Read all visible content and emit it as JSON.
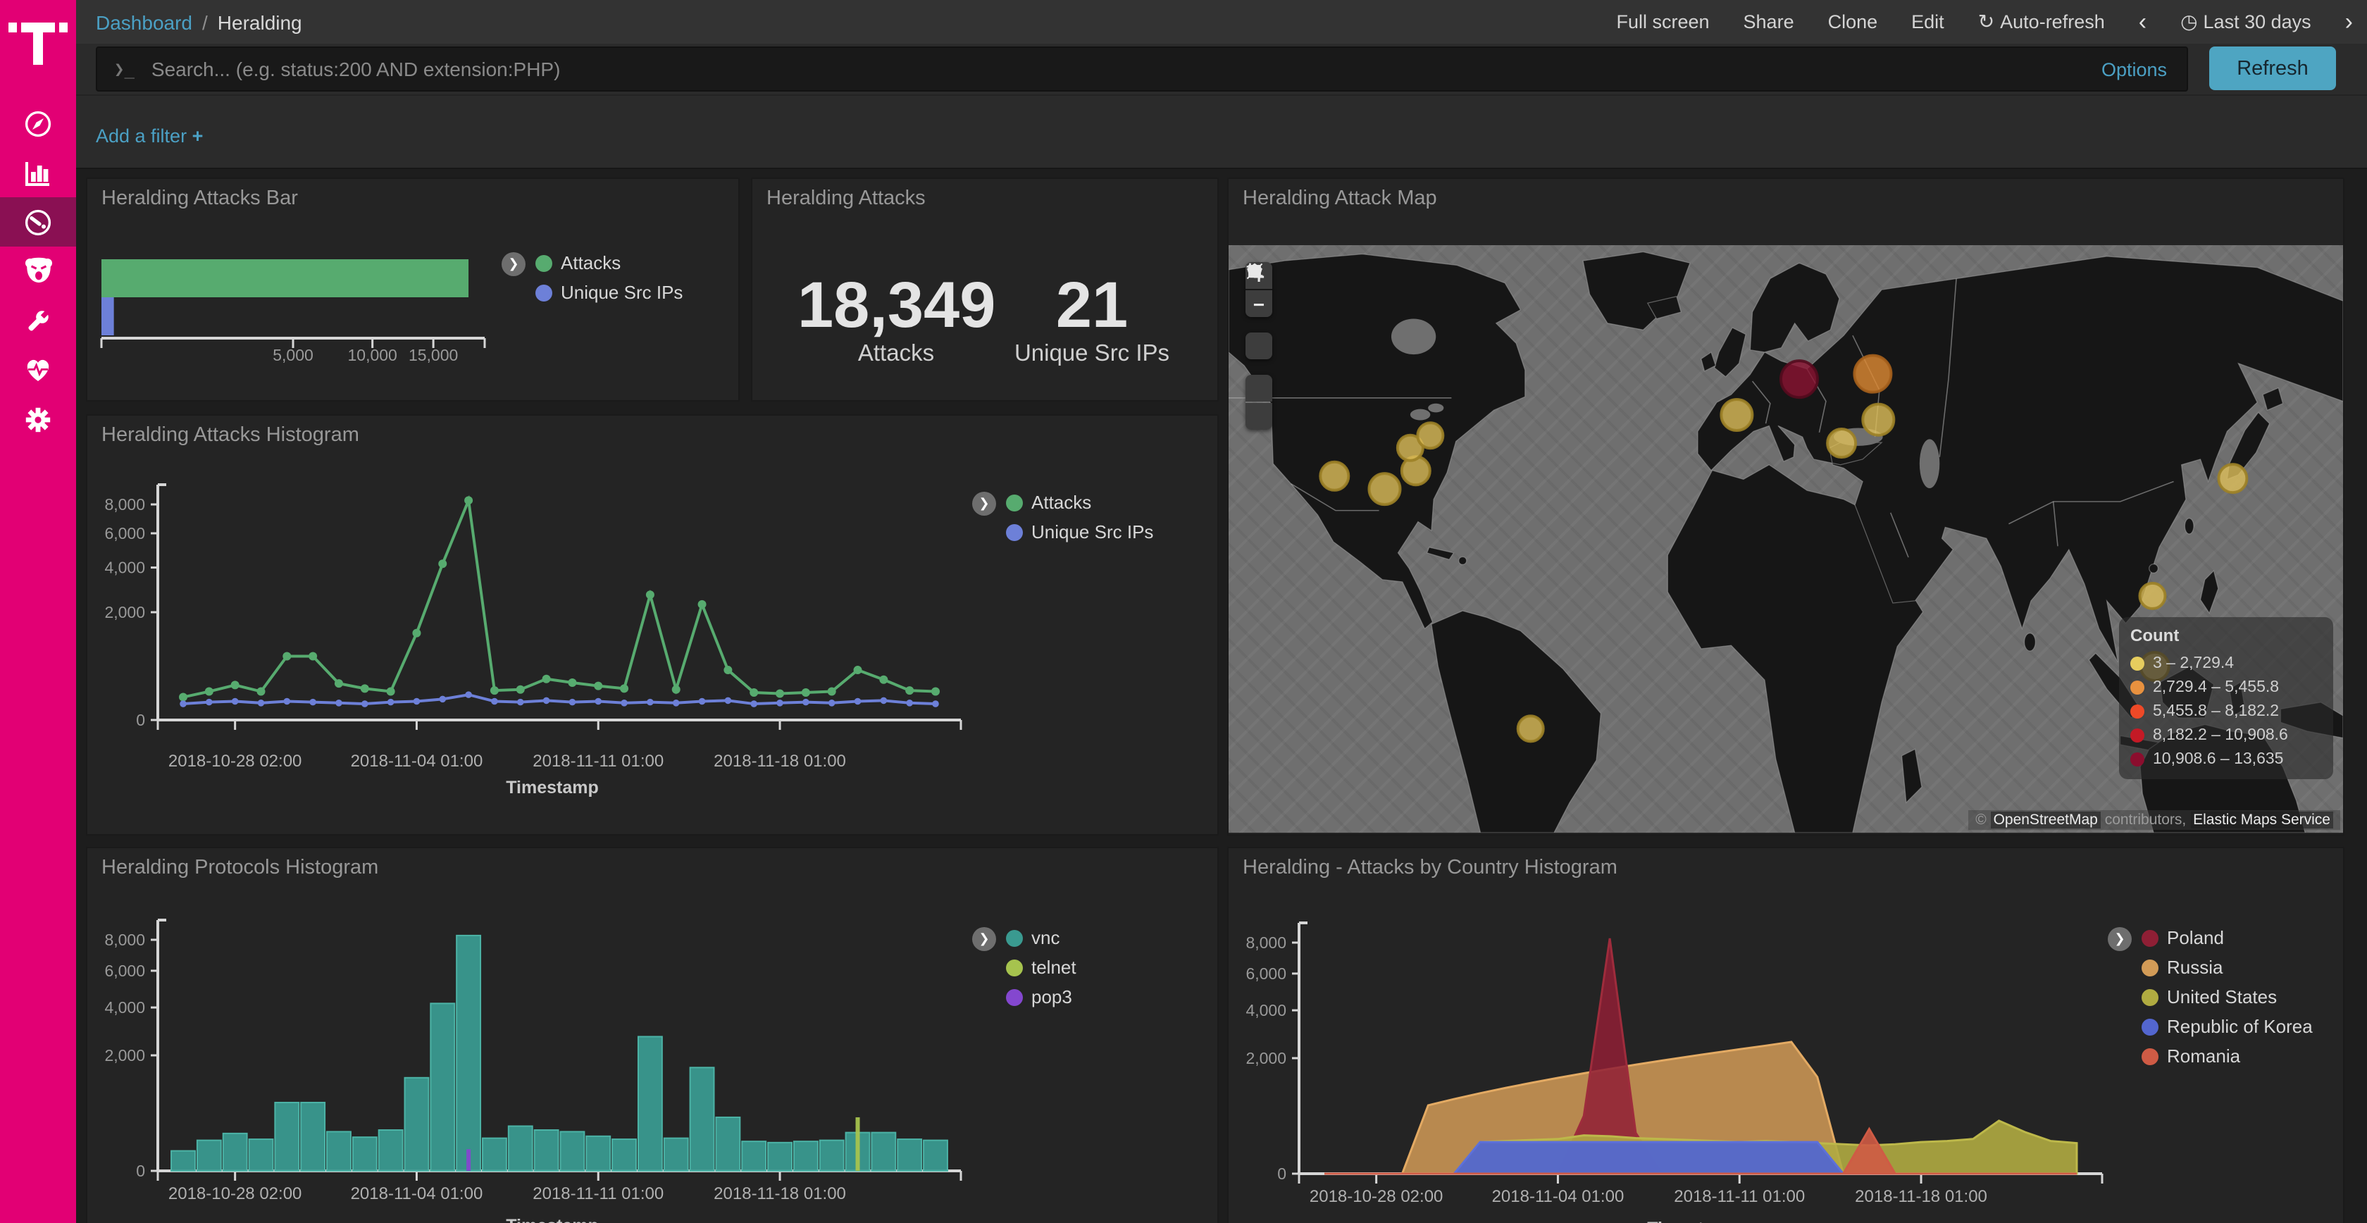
{
  "topnav": {
    "breadcrumb": {
      "root": "Dashboard",
      "separator": "/",
      "current": "Heralding"
    },
    "actions": [
      "Full screen",
      "Share",
      "Clone",
      "Edit"
    ],
    "refresh_icon": "↻",
    "auto_refresh": "Auto-refresh",
    "prev": "‹",
    "clock_icon": "◷",
    "time_range": "Last 30 days",
    "next": "›"
  },
  "search": {
    "prompt": "❯_",
    "placeholder": "Search... (e.g. status:200 AND extension:PHP)",
    "options": "Options",
    "refresh": "Refresh"
  },
  "filters": {
    "add_filter": "Add a filter",
    "plus": "+"
  },
  "sidebar": {
    "accent": "#e20074",
    "selected_bg": "#8a1053",
    "icons": [
      "compass-icon",
      "bar-chart-icon",
      "gauge-icon",
      "bear-icon",
      "wrench-icon",
      "heartbeat-icon",
      "gear-icon"
    ]
  },
  "panels": {
    "attacks_metric": {
      "title": "Heralding Attacks",
      "items": [
        {
          "value": "18,349",
          "label": "Attacks"
        },
        {
          "value": "21",
          "label": "Unique Src IPs"
        }
      ]
    }
  },
  "map": {
    "title": "Heralding Attack Map",
    "controls": {
      "zoom_in": "+",
      "zoom_out": "−"
    },
    "legend": {
      "title": "Count",
      "items": [
        {
          "range": "3 – 2,729.4",
          "color": "#e6cd5e"
        },
        {
          "range": "2,729.4 – 5,455.8",
          "color": "#e8913f"
        },
        {
          "range": "5,455.8 – 8,182.2",
          "color": "#ee4927"
        },
        {
          "range": "8,182.2 – 10,908.6",
          "color": "#c41a26"
        },
        {
          "range": "10,908.6 – 13,635",
          "color": "#8b0e2e"
        }
      ]
    },
    "attribution": {
      "prefix": "©",
      "osm": "OpenStreetMap",
      "middle": "contributors,",
      "ems": "Elastic Maps Service"
    },
    "bubbles": [
      {
        "x": 9.5,
        "y": 39.3,
        "r": 10,
        "fill": "#debf5a",
        "stroke": "#9c8126"
      },
      {
        "x": 14.0,
        "y": 41.5,
        "r": 11,
        "fill": "#debf5a",
        "stroke": "#9c8126"
      },
      {
        "x": 16.8,
        "y": 38.4,
        "r": 10,
        "fill": "#debf5a",
        "stroke": "#9c8126"
      },
      {
        "x": 16.3,
        "y": 34.5,
        "r": 9,
        "fill": "#debf5a",
        "stroke": "#9c8126"
      },
      {
        "x": 18.1,
        "y": 32.4,
        "r": 9,
        "fill": "#debf5a",
        "stroke": "#9c8126"
      },
      {
        "x": 27.1,
        "y": 82.3,
        "r": 9,
        "fill": "#debf5a",
        "stroke": "#9c8126"
      },
      {
        "x": 45.6,
        "y": 28.9,
        "r": 11,
        "fill": "#debf5a",
        "stroke": "#9c8126"
      },
      {
        "x": 51.2,
        "y": 22.8,
        "r": 13,
        "fill": "#8c1332",
        "stroke": "#540b1e"
      },
      {
        "x": 57.8,
        "y": 21.9,
        "r": 13,
        "fill": "#e08b33",
        "stroke": "#a6611c"
      },
      {
        "x": 58.3,
        "y": 29.7,
        "r": 11,
        "fill": "#debf5a",
        "stroke": "#9c8126"
      },
      {
        "x": 55.0,
        "y": 33.7,
        "r": 10,
        "fill": "#debf5a",
        "stroke": "#9c8126"
      },
      {
        "x": 90.1,
        "y": 39.7,
        "r": 10,
        "fill": "#debf5a",
        "stroke": "#9c8126"
      },
      {
        "x": 82.9,
        "y": 59.7,
        "r": 9,
        "fill": "#debf5a",
        "stroke": "#9c8126"
      },
      {
        "x": 83.1,
        "y": 71.7,
        "r": 10,
        "fill": "#debf5a",
        "stroke": "#9c8126"
      }
    ]
  },
  "chart_data": [
    {
      "id": "attacks-bar",
      "type": "bar",
      "orientation": "horizontal",
      "title": "Heralding Attacks Bar",
      "x_scale": "sqrt",
      "xlim": [
        0,
        20000
      ],
      "xticks": [
        5000,
        10000,
        15000
      ],
      "categories": [
        "Attacks",
        "Unique Src IPs"
      ],
      "values": [
        18349,
        21
      ],
      "colors": [
        "#57ab6f",
        "#6d80d8"
      ]
    },
    {
      "id": "attacks-histogram",
      "type": "line",
      "title": "Heralding Attacks Histogram",
      "xlabel": "Timestamp",
      "y_scale": "sqrt",
      "ylim": [
        0,
        8800
      ],
      "yticks": [
        0,
        2000,
        4000,
        6000,
        8000
      ],
      "x_start": "2018-10-26",
      "x_step_days": 1,
      "xticks": [
        {
          "index": 2,
          "label": "2018-10-28 02:00"
        },
        {
          "index": 9,
          "label": "2018-11-04 01:00"
        },
        {
          "index": 16,
          "label": "2018-11-11 01:00"
        },
        {
          "index": 23,
          "label": "2018-11-18 01:00"
        }
      ],
      "series": [
        {
          "name": "Attacks",
          "color": "#57ab6f",
          "values": [
            90,
            140,
            210,
            140,
            700,
            700,
            230,
            170,
            140,
            1300,
            4200,
            8300,
            150,
            160,
            290,
            240,
            200,
            170,
            2700,
            160,
            2300,
            430,
            130,
            120,
            130,
            140,
            430,
            280,
            150,
            140
          ]
        },
        {
          "name": "Unique Src IPs",
          "color": "#6d80d8",
          "values": [
            45,
            55,
            60,
            50,
            60,
            55,
            50,
            45,
            55,
            60,
            75,
            110,
            60,
            55,
            65,
            55,
            60,
            50,
            55,
            50,
            60,
            65,
            45,
            50,
            55,
            50,
            60,
            65,
            50,
            45
          ]
        }
      ]
    },
    {
      "id": "protocols-histogram",
      "type": "bar",
      "title": "Heralding Protocols Histogram",
      "xlabel": "Timestamp",
      "y_scale": "sqrt",
      "ylim": [
        0,
        8800
      ],
      "yticks": [
        0,
        2000,
        4000,
        6000,
        8000
      ],
      "x_start": "2018-10-26",
      "x_step_days": 1,
      "xticks": [
        {
          "index": 2,
          "label": "2018-10-28 02:00"
        },
        {
          "index": 9,
          "label": "2018-11-04 01:00"
        },
        {
          "index": 16,
          "label": "2018-11-11 01:00"
        },
        {
          "index": 23,
          "label": "2018-11-18 01:00"
        }
      ],
      "series": [
        {
          "name": "vnc",
          "color": "#3a9a90",
          "stroke": "#4cb3a6",
          "values": [
            60,
            140,
            210,
            150,
            700,
            700,
            230,
            170,
            250,
            1300,
            4200,
            8300,
            160,
            300,
            250,
            230,
            180,
            150,
            2700,
            160,
            1600,
            430,
            130,
            120,
            130,
            140,
            220,
            220,
            150,
            140
          ]
        },
        {
          "name": "telnet",
          "color": "#a6c34e",
          "values": [
            0,
            0,
            0,
            0,
            0,
            0,
            0,
            0,
            0,
            0,
            0,
            0,
            0,
            0,
            0,
            0,
            0,
            0,
            0,
            0,
            0,
            0,
            0,
            0,
            0,
            0,
            430,
            0,
            0,
            0
          ]
        },
        {
          "name": "pop3",
          "color": "#8447cf",
          "values": [
            0,
            0,
            0,
            0,
            0,
            0,
            0,
            0,
            0,
            0,
            0,
            70,
            0,
            0,
            0,
            0,
            0,
            0,
            0,
            0,
            0,
            0,
            0,
            0,
            0,
            0,
            0,
            0,
            0,
            0
          ]
        }
      ]
    },
    {
      "id": "country-histogram",
      "type": "area",
      "title": "Heralding - Attacks by Country Histogram",
      "xlabel": "Timestamp",
      "y_scale": "sqrt",
      "ylim": [
        0,
        8800
      ],
      "yticks": [
        0,
        2000,
        4000,
        6000,
        8000
      ],
      "x_start": "2018-10-26",
      "x_step_days": 1,
      "xticks": [
        {
          "index": 2,
          "label": "2018-10-28 02:00"
        },
        {
          "index": 9,
          "label": "2018-11-04 01:00"
        },
        {
          "index": 16,
          "label": "2018-11-11 01:00"
        },
        {
          "index": 23,
          "label": "2018-11-18 01:00"
        }
      ],
      "series": [
        {
          "name": "Russia",
          "color": "#d29b57",
          "stroke": "#e3aa63",
          "opacity": 0.85,
          "values": [
            0,
            0,
            0,
            0,
            700,
            835,
            970,
            1105,
            1240,
            1375,
            1510,
            1645,
            1780,
            1915,
            2050,
            2185,
            2320,
            2455,
            2600,
            1400,
            0,
            0,
            0,
            0,
            0,
            0,
            0,
            0,
            0,
            0
          ]
        },
        {
          "name": "Poland",
          "color": "#8f1f35",
          "stroke": "#9e2c3c",
          "opacity": 0.85,
          "values": [
            0,
            0,
            0,
            0,
            0,
            0,
            0,
            0,
            0,
            0,
            500,
            8300,
            250,
            0,
            0,
            0,
            0,
            0,
            0,
            0,
            0,
            0,
            0,
            0,
            0,
            0,
            0,
            0,
            0,
            0
          ]
        },
        {
          "name": "United States",
          "color": "#b0ab41",
          "stroke": "#bdb84a",
          "opacity": 0.9,
          "values": [
            0,
            0,
            0,
            0,
            0,
            0,
            150,
            160,
            170,
            180,
            220,
            210,
            190,
            180,
            170,
            160,
            150,
            160,
            150,
            140,
            130,
            120,
            130,
            150,
            160,
            180,
            420,
            260,
            160,
            140
          ]
        },
        {
          "name": "Republic of Korea",
          "color": "#5366cf",
          "stroke": "#5d70da",
          "opacity": 0.95,
          "values": [
            0,
            0,
            0,
            0,
            0,
            0,
            150,
            150,
            150,
            150,
            150,
            150,
            150,
            150,
            150,
            150,
            150,
            150,
            150,
            150,
            0,
            0,
            0,
            0,
            0,
            0,
            0,
            0,
            0,
            0
          ]
        },
        {
          "name": "Romania",
          "color": "#cf5b45",
          "stroke": "#cf5b45",
          "opacity": 0.9,
          "values": [
            0,
            0,
            0,
            0,
            0,
            0,
            0,
            0,
            0,
            0,
            0,
            0,
            0,
            0,
            0,
            0,
            0,
            0,
            0,
            0,
            0,
            300,
            0,
            0,
            0,
            0,
            0,
            0,
            0,
            0
          ]
        }
      ],
      "legend_order": [
        "Poland",
        "Russia",
        "United States",
        "Republic of Korea",
        "Romania"
      ]
    }
  ]
}
